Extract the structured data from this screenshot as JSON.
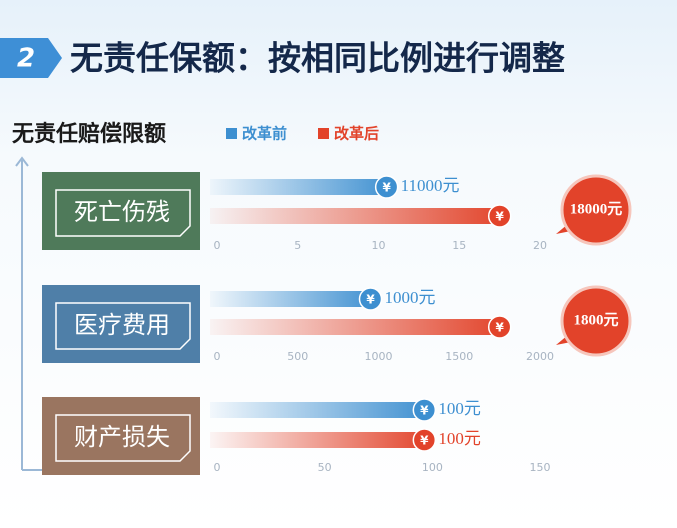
{
  "header": {
    "number": "2",
    "title": "无责任保额：按相同比例进行调整"
  },
  "subtitle": "无责任赔偿限额",
  "legend": [
    {
      "name": "改革前",
      "color": "#3d8fd0"
    },
    {
      "name": "改革后",
      "color": "#e2432a"
    }
  ],
  "chart_data": [
    {
      "type": "bar",
      "title": "死亡伤残",
      "panel_color": "#4f7a5a",
      "series": [
        {
          "values": [
            11
          ],
          "value_labels": [
            "11000元"
          ]
        },
        {
          "values": [
            18
          ],
          "value_labels": [
            "18000元"
          ]
        }
      ],
      "xlim": [
        0,
        20
      ],
      "xticks": [
        0,
        5,
        10,
        15,
        20
      ]
    },
    {
      "type": "bar",
      "title": "医疗费用",
      "panel_color": "#4f7fa8",
      "series": [
        {
          "values": [
            1000
          ],
          "value_labels": [
            "1000元"
          ]
        },
        {
          "values": [
            1800
          ],
          "value_labels": [
            "1800元"
          ]
        }
      ],
      "xlim": [
        0,
        2000
      ],
      "xticks": [
        0,
        500,
        1000,
        1500,
        2000
      ]
    },
    {
      "type": "bar",
      "title": "财产损失",
      "panel_color": "#9a7560",
      "series": [
        {
          "values": [
            100
          ],
          "value_labels": [
            "100元"
          ]
        },
        {
          "values": [
            100
          ],
          "value_labels": [
            "100元"
          ]
        }
      ],
      "xlim": [
        0,
        150
      ],
      "xticks": [
        0,
        50,
        100,
        150
      ]
    }
  ]
}
